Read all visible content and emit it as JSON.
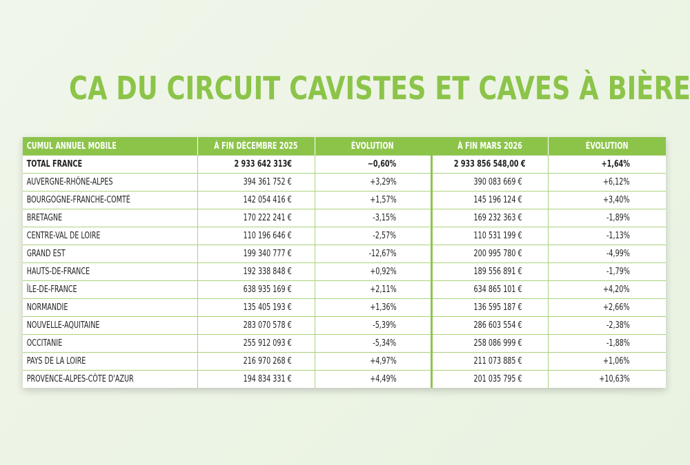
{
  "title": "CA DU CIRCUIT CAVISTES ET CAVES À BIÈRES",
  "colors": {
    "accent": "#8cc44a",
    "grid": "#a9d27a"
  },
  "chart_data": {
    "type": "table",
    "headers": [
      "CUMUL ANNUEL MOBILE",
      "À FIN DÉCEMBRE 2025",
      "ÉVOLUTION",
      "À FIN MARS 2026",
      "ÉVOLUTION"
    ],
    "rows": [
      [
        "TOTAL FRANCE",
        "2 933 642 313€",
        "−0,60%",
        "2 933 856 548,00 €",
        "+1,64%"
      ],
      [
        "AUVERGNE-RHÔNE-ALPES",
        "394 361 752 €",
        "+3,29%",
        "390 083 669 €",
        "+6,12%"
      ],
      [
        "BOURGOGNE-FRANCHE-COMTÉ",
        "142 054 416 €",
        "+1,57%",
        "145 196 124 €",
        "+3,40%"
      ],
      [
        "BRETAGNE",
        "170 222 241 €",
        "-3,15%",
        "169 232 363 €",
        "-1,89%"
      ],
      [
        "CENTRE-VAL DE LOIRE",
        "110 196 646 €",
        "-2,57%",
        "110 531 199 €",
        "-1,13%"
      ],
      [
        "GRAND EST",
        "199 340 777 €",
        "-12,67%",
        "200 995 780 €",
        "-4,99%"
      ],
      [
        "HAUTS-DE-FRANCE",
        "192 338 848 €",
        "+0,92%",
        "189 556 891 €",
        "-1,79%"
      ],
      [
        "ÎLE-DE-FRANCE",
        "638 935 169 €",
        "+2,11%",
        "634 865 101 €",
        "+4,20%"
      ],
      [
        "NORMANDIE",
        "135 405 193 €",
        "+1,36%",
        "136 595 187 €",
        "+2,66%"
      ],
      [
        "NOUVELLE-AQUITAINE",
        "283 070 578 €",
        "-5,39%",
        "286 603 554 €",
        "-2,38%"
      ],
      [
        "OCCITANIE",
        "255 912 093 €",
        "-5,34%",
        "258 086 999 €",
        "-1,88%"
      ],
      [
        "PAYS DE LA LOIRE",
        "216 970 268 €",
        "+4,97%",
        "211 073 885 €",
        "+1,06%"
      ],
      [
        "PROVENCE-ALPES-CÔTE D'AZUR",
        "194 834 331 €",
        "+4,49%",
        "201 035 795 €",
        "+10,63%"
      ]
    ]
  }
}
